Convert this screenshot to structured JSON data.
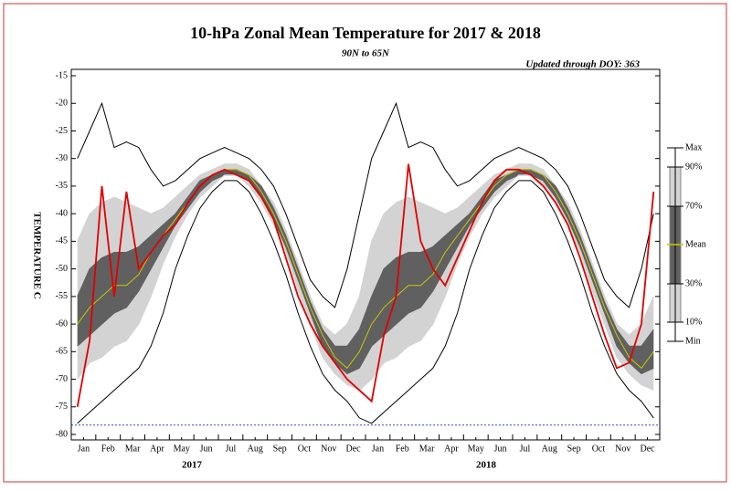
{
  "chart_data": {
    "type": "line",
    "title": "10-hPa Zonal Mean Temperature for 2017 & 2018",
    "subtitle": "90N to 65N",
    "annotation": "Updated through DOY: 363",
    "y_label": "TEMPERATURE C",
    "year_labels": [
      "2017",
      "2018"
    ],
    "categories": [
      "Jan",
      null,
      "Feb",
      null,
      "Mar",
      null,
      "Apr",
      null,
      "May",
      null,
      "Jun",
      null,
      "Jul",
      null,
      "Aug",
      null,
      "Sep",
      null,
      "Oct",
      null,
      "Nov",
      null,
      "Dec",
      null,
      "Jan",
      null,
      "Feb",
      null,
      "Mar",
      null,
      "Apr",
      null,
      "May",
      null,
      "Jun",
      null,
      "Jul",
      null,
      "Aug",
      null,
      "Sep",
      null,
      "Oct",
      null,
      "Nov",
      null,
      "Dec",
      null
    ],
    "ylim": [
      -80,
      -15
    ],
    "yticks": [
      -80,
      -75,
      -70,
      -65,
      -60,
      -55,
      -50,
      -45,
      -40,
      -35,
      -30,
      -25,
      -20,
      -15
    ],
    "hline": {
      "value": -78.3,
      "color": "#3050c0"
    },
    "series": [
      {
        "name": "Max",
        "color": "#000000",
        "values": [
          -30,
          -25,
          -20,
          -28,
          -27,
          -28,
          -32,
          -35,
          -34,
          -32,
          -30,
          -29,
          -28,
          -29,
          -30,
          -32,
          -35,
          -40,
          -46,
          -52,
          -55,
          -57,
          -50,
          -40,
          -30,
          -25,
          -20,
          -28,
          -27,
          -28,
          -32,
          -35,
          -34,
          -32,
          -30,
          -29,
          -28,
          -29,
          -30,
          -32,
          -35,
          -40,
          -46,
          -52,
          -55,
          -57,
          -50,
          -40
        ]
      },
      {
        "name": "90%",
        "color": "#d3d3d3",
        "values": [
          -45,
          -40,
          -38,
          -37,
          -38,
          -39,
          -40,
          -39,
          -37,
          -35,
          -33,
          -32,
          -31,
          -31,
          -32,
          -35,
          -38,
          -43,
          -49,
          -55,
          -60,
          -62,
          -60,
          -55,
          -45,
          -40,
          -38,
          -37,
          -38,
          -39,
          -40,
          -39,
          -37,
          -35,
          -33,
          -32,
          -31,
          -31,
          -32,
          -35,
          -38,
          -43,
          -49,
          -55,
          -60,
          -62,
          -60,
          -55
        ]
      },
      {
        "name": "70%",
        "color": "#606060",
        "values": [
          -55,
          -50,
          -48,
          -47,
          -47,
          -46,
          -44,
          -42,
          -40,
          -37,
          -34,
          -33,
          -32,
          -32,
          -33,
          -35,
          -39,
          -44,
          -50,
          -56,
          -61,
          -64,
          -64,
          -61,
          -55,
          -50,
          -48,
          -47,
          -47,
          -46,
          -44,
          -42,
          -40,
          -37,
          -34,
          -33,
          -32,
          -32,
          -33,
          -35,
          -39,
          -44,
          -50,
          -56,
          -61,
          -64,
          -64,
          -61
        ]
      },
      {
        "name": "Mean",
        "color": "#c8c800",
        "values": [
          -60,
          -57,
          -55,
          -53,
          -53,
          -51,
          -47,
          -44,
          -41,
          -38,
          -35,
          -33,
          -32,
          -32,
          -33,
          -36,
          -40,
          -45,
          -51,
          -57,
          -62,
          -66,
          -68,
          -65,
          -60,
          -57,
          -55,
          -53,
          -53,
          -51,
          -47,
          -44,
          -41,
          -38,
          -35,
          -33,
          -32,
          -32,
          -33,
          -36,
          -40,
          -45,
          -51,
          -57,
          -62,
          -66,
          -68,
          -65
        ]
      },
      {
        "name": "30%",
        "color": "#606060",
        "values": [
          -64,
          -62,
          -60,
          -58,
          -57,
          -54,
          -50,
          -46,
          -42,
          -39,
          -36,
          -34,
          -33,
          -33,
          -34,
          -37,
          -41,
          -46,
          -52,
          -58,
          -64,
          -67,
          -69,
          -68,
          -64,
          -62,
          -60,
          -58,
          -57,
          -54,
          -50,
          -46,
          -42,
          -39,
          -36,
          -34,
          -33,
          -33,
          -34,
          -37,
          -41,
          -46,
          -52,
          -58,
          -64,
          -67,
          -69,
          -68
        ]
      },
      {
        "name": "10%",
        "color": "#d3d3d3",
        "values": [
          -70,
          -67,
          -66,
          -64,
          -63,
          -60,
          -55,
          -49,
          -44,
          -40,
          -37,
          -35,
          -33,
          -33,
          -35,
          -38,
          -42,
          -47,
          -54,
          -60,
          -66,
          -69,
          -71,
          -72,
          -70,
          -67,
          -66,
          -64,
          -63,
          -60,
          -55,
          -49,
          -44,
          -40,
          -37,
          -35,
          -33,
          -33,
          -35,
          -38,
          -42,
          -47,
          -54,
          -60,
          -66,
          -69,
          -71,
          -72
        ]
      },
      {
        "name": "Min",
        "color": "#000000",
        "values": [
          -78,
          -76,
          -74,
          -72,
          -70,
          -68,
          -64,
          -58,
          -50,
          -44,
          -39,
          -36,
          -34,
          -34,
          -36,
          -40,
          -45,
          -51,
          -58,
          -64,
          -69,
          -72,
          -74,
          -77,
          -78,
          -76,
          -74,
          -72,
          -70,
          -68,
          -64,
          -58,
          -50,
          -44,
          -39,
          -36,
          -34,
          -34,
          -36,
          -40,
          -45,
          -51,
          -58,
          -64,
          -69,
          -72,
          -74,
          -77
        ]
      },
      {
        "color": "#e00000",
        "values": [
          -75,
          -63,
          -35,
          -55,
          -36,
          -50,
          -47,
          -44,
          -42,
          -38,
          -35,
          -33,
          -32,
          -33,
          -34,
          -37,
          -41,
          -48,
          -55,
          -60,
          -64,
          -67,
          -70,
          -72,
          -74,
          -62,
          -55,
          -31,
          -45,
          -50,
          -53,
          -48,
          -43,
          -38,
          -34,
          -32,
          -32,
          -33,
          -35,
          -38,
          -42,
          -48,
          -55,
          -62,
          -68,
          -67,
          -60,
          -36
        ]
      }
    ]
  }
}
